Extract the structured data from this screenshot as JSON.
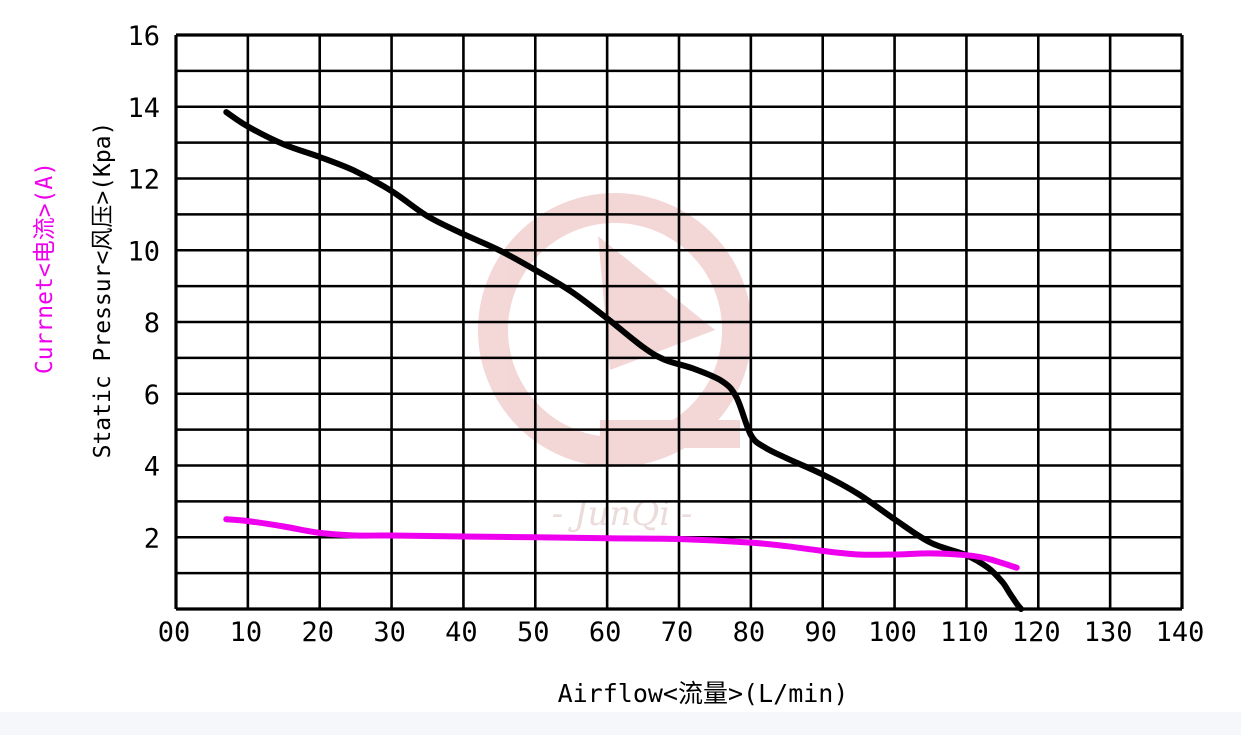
{
  "chart_data": {
    "type": "line",
    "title": "",
    "xlabel": "Airflow<流量>(L/min)",
    "ylabel": "Static Pressur<风压>(Kpa)",
    "y2label": "Currnet<电流>(A)",
    "xlim": [
      0,
      140
    ],
    "ylim": [
      0,
      16
    ],
    "x_ticks": [
      0,
      10,
      20,
      30,
      40,
      50,
      60,
      70,
      80,
      90,
      100,
      110,
      120,
      130,
      140
    ],
    "x_tick_labels": [
      "00",
      "10",
      "20",
      "30",
      "40",
      "50",
      "60",
      "70",
      "80",
      "90",
      "100",
      "110",
      "120",
      "130",
      "140"
    ],
    "y_ticks": [
      2,
      4,
      6,
      8,
      10,
      12,
      14,
      16
    ],
    "y_tick_labels": [
      "2",
      "4",
      "6",
      "8",
      "10",
      "12",
      "14",
      "16"
    ],
    "grid": true,
    "grid_minor_y_step": 1,
    "series": [
      {
        "name": "Static Pressur<风压>(Kpa)",
        "color": "#000000",
        "x": [
          7,
          10,
          15,
          20,
          25,
          30,
          35,
          40,
          45,
          50,
          55,
          60,
          65,
          68,
          72,
          76,
          78,
          80,
          82,
          85,
          90,
          95,
          100,
          105,
          110,
          113,
          115,
          116,
          117,
          117.6
        ],
        "y": [
          13.85,
          13.45,
          12.95,
          12.6,
          12.2,
          11.65,
          10.95,
          10.45,
          10.0,
          9.45,
          8.85,
          8.1,
          7.3,
          6.95,
          6.7,
          6.35,
          5.9,
          4.85,
          4.5,
          4.2,
          3.75,
          3.2,
          2.5,
          1.85,
          1.5,
          1.15,
          0.75,
          0.45,
          0.15,
          0.0
        ]
      },
      {
        "name": "Currnet<电流>(A)",
        "color": "#ee00ee",
        "x": [
          7,
          10,
          15,
          20,
          25,
          30,
          40,
          50,
          60,
          70,
          80,
          85,
          90,
          95,
          100,
          105,
          110,
          113,
          117
        ],
        "y": [
          2.5,
          2.45,
          2.3,
          2.12,
          2.05,
          2.05,
          2.02,
          2.0,
          1.97,
          1.95,
          1.85,
          1.75,
          1.62,
          1.52,
          1.52,
          1.55,
          1.5,
          1.4,
          1.15
        ]
      }
    ]
  },
  "watermark": {
    "text": "- JunQi -",
    "color": "#f2d3d3"
  },
  "colors": {
    "axis_text": "#000000",
    "current_label": "#ee00ee",
    "grid": "#000000"
  }
}
